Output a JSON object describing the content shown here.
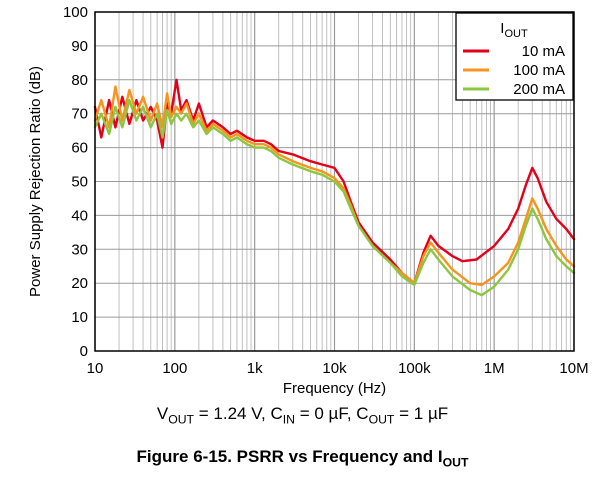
{
  "chart_data": {
    "type": "line",
    "xlabel": "Frequency (Hz)",
    "ylabel": "Power Supply Rejection Ratio (dB)",
    "xscale": "log",
    "xlim": [
      10,
      10000000
    ],
    "ylim": [
      0,
      100
    ],
    "x_ticks": [
      10,
      100,
      1000,
      10000,
      100000,
      1000000,
      10000000
    ],
    "x_tick_labels": [
      "10",
      "100",
      "1k",
      "10k",
      "100k",
      "1M",
      "10M"
    ],
    "y_ticks": [
      0,
      10,
      20,
      30,
      40,
      50,
      60,
      70,
      80,
      90,
      100
    ],
    "grid": true,
    "legend": {
      "title_main": "I",
      "title_sub": "OUT",
      "placement": "top-right"
    },
    "series": [
      {
        "name": "10 mA",
        "color": "#e3001b",
        "points": [
          [
            10,
            72
          ],
          [
            12,
            63
          ],
          [
            15,
            74
          ],
          [
            18,
            66
          ],
          [
            22,
            75
          ],
          [
            27,
            67
          ],
          [
            33,
            74
          ],
          [
            40,
            68
          ],
          [
            50,
            72
          ],
          [
            60,
            68
          ],
          [
            70,
            60
          ],
          [
            80,
            73
          ],
          [
            90,
            70
          ],
          [
            105,
            80
          ],
          [
            120,
            71
          ],
          [
            140,
            74
          ],
          [
            170,
            68
          ],
          [
            200,
            73
          ],
          [
            250,
            66
          ],
          [
            300,
            68
          ],
          [
            400,
            66
          ],
          [
            500,
            64
          ],
          [
            600,
            65
          ],
          [
            800,
            63
          ],
          [
            1000,
            62
          ],
          [
            1300,
            62
          ],
          [
            1600,
            61
          ],
          [
            2000,
            59
          ],
          [
            3000,
            58
          ],
          [
            5000,
            56
          ],
          [
            7000,
            55
          ],
          [
            10000,
            54
          ],
          [
            13000,
            50
          ],
          [
            16000,
            44
          ],
          [
            20000,
            38
          ],
          [
            30000,
            32
          ],
          [
            50000,
            27
          ],
          [
            70000,
            23
          ],
          [
            100000,
            20
          ],
          [
            130000,
            29
          ],
          [
            160000,
            34
          ],
          [
            200000,
            31
          ],
          [
            300000,
            28
          ],
          [
            400000,
            26.5
          ],
          [
            600000,
            27
          ],
          [
            1000000,
            31
          ],
          [
            1500000,
            36
          ],
          [
            2000000,
            42
          ],
          [
            2500000,
            49
          ],
          [
            3000000,
            54
          ],
          [
            3500000,
            51
          ],
          [
            4500000,
            44
          ],
          [
            6000000,
            39
          ],
          [
            8000000,
            36
          ],
          [
            10000000,
            33
          ]
        ]
      },
      {
        "name": "100 mA",
        "color": "#f7941d",
        "points": [
          [
            10,
            68
          ],
          [
            12,
            74
          ],
          [
            15,
            66
          ],
          [
            18,
            78
          ],
          [
            22,
            68
          ],
          [
            27,
            77
          ],
          [
            33,
            70
          ],
          [
            40,
            75
          ],
          [
            50,
            68
          ],
          [
            60,
            73
          ],
          [
            70,
            66
          ],
          [
            80,
            76
          ],
          [
            90,
            69
          ],
          [
            105,
            72
          ],
          [
            120,
            70
          ],
          [
            140,
            73
          ],
          [
            170,
            67
          ],
          [
            200,
            70
          ],
          [
            250,
            65
          ],
          [
            300,
            67
          ],
          [
            400,
            65
          ],
          [
            500,
            63
          ],
          [
            600,
            64
          ],
          [
            800,
            62
          ],
          [
            1000,
            61
          ],
          [
            1300,
            61
          ],
          [
            1600,
            60
          ],
          [
            2000,
            58
          ],
          [
            3000,
            56
          ],
          [
            5000,
            54
          ],
          [
            7000,
            53
          ],
          [
            10000,
            51
          ],
          [
            13000,
            48
          ],
          [
            16000,
            43
          ],
          [
            20000,
            37
          ],
          [
            30000,
            31
          ],
          [
            50000,
            26
          ],
          [
            70000,
            23
          ],
          [
            100000,
            20
          ],
          [
            130000,
            28
          ],
          [
            160000,
            32
          ],
          [
            200000,
            29
          ],
          [
            300000,
            24
          ],
          [
            500000,
            20
          ],
          [
            700000,
            19.5
          ],
          [
            1000000,
            22
          ],
          [
            1500000,
            26
          ],
          [
            2000000,
            32
          ],
          [
            2500000,
            39
          ],
          [
            3000000,
            45
          ],
          [
            3500000,
            42
          ],
          [
            4500000,
            36
          ],
          [
            6000000,
            31
          ],
          [
            8000000,
            27
          ],
          [
            10000000,
            25
          ]
        ]
      },
      {
        "name": "200 mA",
        "color": "#8dc63f",
        "points": [
          [
            10,
            66
          ],
          [
            12,
            70
          ],
          [
            15,
            64
          ],
          [
            18,
            72
          ],
          [
            22,
            66
          ],
          [
            27,
            74
          ],
          [
            33,
            68
          ],
          [
            40,
            72
          ],
          [
            50,
            66
          ],
          [
            60,
            70
          ],
          [
            70,
            63
          ],
          [
            80,
            71
          ],
          [
            90,
            67
          ],
          [
            105,
            70
          ],
          [
            120,
            68
          ],
          [
            140,
            70
          ],
          [
            170,
            66
          ],
          [
            200,
            68
          ],
          [
            250,
            64
          ],
          [
            300,
            66
          ],
          [
            400,
            64
          ],
          [
            500,
            62
          ],
          [
            600,
            63
          ],
          [
            800,
            61
          ],
          [
            1000,
            60
          ],
          [
            1300,
            60
          ],
          [
            1600,
            59
          ],
          [
            2000,
            57
          ],
          [
            3000,
            55
          ],
          [
            5000,
            53
          ],
          [
            7000,
            52
          ],
          [
            10000,
            50
          ],
          [
            13000,
            47
          ],
          [
            16000,
            42
          ],
          [
            20000,
            37
          ],
          [
            30000,
            31
          ],
          [
            50000,
            26
          ],
          [
            70000,
            22
          ],
          [
            100000,
            19.5
          ],
          [
            130000,
            26
          ],
          [
            160000,
            30
          ],
          [
            200000,
            27
          ],
          [
            300000,
            22
          ],
          [
            500000,
            18
          ],
          [
            700000,
            16.5
          ],
          [
            1000000,
            19
          ],
          [
            1500000,
            24
          ],
          [
            2000000,
            30
          ],
          [
            2500000,
            37
          ],
          [
            3000000,
            42
          ],
          [
            3500000,
            39
          ],
          [
            4500000,
            33
          ],
          [
            6000000,
            28
          ],
          [
            8000000,
            25
          ],
          [
            10000000,
            23
          ]
        ]
      }
    ]
  },
  "conditions": {
    "v_main": "V",
    "v_sub": "OUT",
    "v_val": " = 1.24 V, ",
    "cin_main": "C",
    "cin_sub": "IN",
    "cin_val": " = 0 µF, ",
    "cout_main": "C",
    "cout_sub": "OUT",
    "cout_val": " = 1 µF"
  },
  "caption": {
    "text": "Figure 6-15. PSRR vs Frequency and I",
    "sub": "OUT"
  }
}
